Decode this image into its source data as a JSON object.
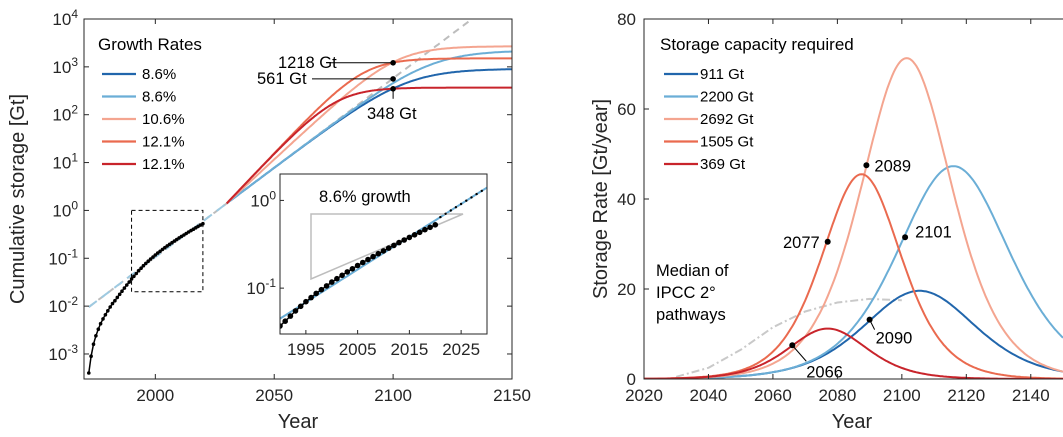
{
  "colors": {
    "dark_blue": "#2166ac",
    "light_blue": "#6baed6",
    "light_red": "#f4a590",
    "mid_red": "#ea6a4f",
    "dark_red": "#c8242b",
    "trend_gray": "#bdbdbd",
    "axis": "#262626"
  },
  "chart_data": [
    {
      "type": "line",
      "id": "left",
      "xlabel": "Year",
      "ylabel": "Cumulative storage [Gt]",
      "xlim": [
        1970,
        2150
      ],
      "ylim": [
        0.0003,
        10000
      ],
      "yscale": "log",
      "xticks": [
        "2000",
        "2050",
        "2100",
        "2150"
      ],
      "yticks": [
        {
          "value": 0.001,
          "base": "10",
          "exp": "-3"
        },
        {
          "value": 0.01,
          "base": "10",
          "exp": "-2"
        },
        {
          "value": 0.1,
          "base": "10",
          "exp": "-1"
        },
        {
          "value": 1,
          "base": "10",
          "exp": "0"
        },
        {
          "value": 10,
          "base": "10",
          "exp": "1"
        },
        {
          "value": 100,
          "base": "10",
          "exp": "2"
        },
        {
          "value": 1000,
          "base": "10",
          "exp": "3"
        },
        {
          "value": 10000,
          "base": "10",
          "exp": "4"
        }
      ],
      "legend": {
        "title": "Growth Rates",
        "placement": "top-left"
      },
      "series": [
        {
          "name": "8.6%",
          "color": "#2166ac",
          "capacity": 911,
          "rate": 0.086
        },
        {
          "name": "8.6%",
          "color": "#6baed6",
          "capacity": 2200,
          "rate": 0.086
        },
        {
          "name": "10.6%",
          "color": "#f4a590",
          "capacity": 2692,
          "rate": 0.106
        },
        {
          "name": "12.1%",
          "color": "#ea6a4f",
          "capacity": 1505,
          "rate": 0.121
        },
        {
          "name": "12.1%",
          "color": "#c8242b",
          "capacity": 369,
          "rate": 0.121
        }
      ],
      "trend": {
        "rate": 0.086,
        "value_at_2030": 1.4
      },
      "historical": {
        "x": [
          1972,
          1973,
          1974,
          1975,
          1976,
          1977,
          1978,
          1979,
          1980,
          1981,
          1982,
          1983,
          1984,
          1985,
          1986,
          1987,
          1988,
          1989,
          1990,
          1991,
          1992,
          1993,
          1994,
          1995,
          1996,
          1997,
          1998,
          1999,
          2000,
          2001,
          2002,
          2003,
          2004,
          2005,
          2006,
          2007,
          2008,
          2009,
          2010,
          2011,
          2012,
          2013,
          2014,
          2015,
          2016,
          2017,
          2018,
          2019,
          2020
        ],
        "y": [
          0.0004,
          0.0009,
          0.0016,
          0.0024,
          0.0033,
          0.0043,
          0.0054,
          0.0066,
          0.008,
          0.0096,
          0.0113,
          0.013,
          0.0152,
          0.0177,
          0.0205,
          0.0238,
          0.0276,
          0.0318,
          0.037,
          0.042,
          0.048,
          0.055,
          0.062,
          0.07,
          0.078,
          0.087,
          0.096,
          0.106,
          0.117,
          0.128,
          0.14,
          0.153,
          0.166,
          0.181,
          0.196,
          0.212,
          0.229,
          0.247,
          0.266,
          0.286,
          0.307,
          0.33,
          0.354,
          0.379,
          0.405,
          0.433,
          0.463,
          0.494,
          0.527
        ]
      },
      "annotations": [
        {
          "text": "1218 Gt",
          "x": 2100,
          "y": 1218
        },
        {
          "text": "561 Gt",
          "x": 2100,
          "y": 561
        },
        {
          "text": "348 Gt",
          "x": 2100,
          "y": 348
        }
      ],
      "inset": {
        "label": "8.6% growth",
        "xlim": [
          1990,
          2030
        ],
        "ylim": [
          0.03,
          2
        ],
        "xticks": [
          "1995",
          "2005",
          "2015",
          "2025"
        ],
        "yticks": [
          {
            "value": 0.1,
            "base": "10",
            "exp": "-1"
          },
          {
            "value": 1,
            "base": "10",
            "exp": "0"
          }
        ],
        "zoom_box": {
          "x": [
            1990,
            2020
          ],
          "y": [
            0.02,
            1
          ]
        }
      }
    },
    {
      "type": "line",
      "id": "right",
      "xlabel": "Year",
      "ylabel": "Storage Rate [Gt/year]",
      "xlim": [
        2020,
        2150
      ],
      "ylim": [
        0,
        80
      ],
      "xticks": [
        "2020",
        "2040",
        "2060",
        "2080",
        "2100",
        "2120",
        "2140"
      ],
      "yticks": [
        "0",
        "20",
        "40",
        "60",
        "80"
      ],
      "legend": {
        "title": "Storage capacity required",
        "placement": "top-left"
      },
      "series": [
        {
          "name": "911 Gt",
          "color": "#2166ac",
          "capacity": 911,
          "rate": 0.086,
          "peak_year": 2105.5,
          "peak": 19.6
        },
        {
          "name": "2200 Gt",
          "color": "#6baed6",
          "capacity": 2200,
          "rate": 0.086,
          "peak_year": 2116,
          "peak": 47.3
        },
        {
          "name": "2692 Gt",
          "color": "#f4a590",
          "capacity": 2692,
          "rate": 0.106,
          "peak_year": 2101.5,
          "peak": 71.3
        },
        {
          "name": "1505 Gt",
          "color": "#ea6a4f",
          "capacity": 1505,
          "rate": 0.121,
          "peak_year": 2087.5,
          "peak": 45.5
        },
        {
          "name": "369 Gt",
          "color": "#c8242b",
          "capacity": 369,
          "rate": 0.121,
          "peak_year": 2077,
          "peak": 11.2
        }
      ],
      "ipcc_median": {
        "label": [
          "Median of",
          "IPCC 2°",
          "pathways"
        ],
        "x": [
          2030,
          2040,
          2050,
          2060,
          2070,
          2080,
          2090,
          2100
        ],
        "y": [
          0.5,
          2.5,
          6.5,
          11.5,
          15.0,
          17.0,
          17.8,
          17.5
        ]
      },
      "annotations": [
        {
          "text": "2089",
          "x": 2089,
          "y": 47.5
        },
        {
          "text": "2077",
          "x": 2077,
          "y": 30.5
        },
        {
          "text": "2101",
          "x": 2101,
          "y": 31.5
        },
        {
          "text": "2090",
          "x": 2090,
          "y": 13.2
        },
        {
          "text": "2066",
          "x": 2066,
          "y": 7.5
        }
      ]
    }
  ]
}
